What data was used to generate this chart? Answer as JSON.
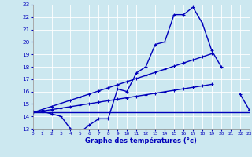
{
  "bg_color": "#cce8f0",
  "line_color": "#0000bb",
  "xlabel": "Graphe des températures (°c)",
  "x_hours": [
    0,
    1,
    2,
    3,
    4,
    5,
    6,
    7,
    8,
    9,
    10,
    11,
    12,
    13,
    14,
    15,
    16,
    17,
    18,
    19,
    20,
    21,
    22,
    23
  ],
  "series1": [
    14.4,
    14.4,
    14.2,
    14.0,
    13.0,
    12.7,
    13.3,
    13.8,
    13.8,
    16.2,
    16.0,
    17.5,
    18.0,
    19.8,
    20.0,
    22.2,
    22.2,
    22.8,
    21.5,
    19.3,
    18.0,
    null,
    15.8,
    14.5
  ],
  "series2": [
    14.3,
    14.3,
    14.3,
    14.3,
    14.3,
    14.3,
    14.3,
    14.3,
    14.3,
    14.3,
    14.3,
    14.3,
    14.3,
    14.3,
    14.3,
    14.3,
    14.3,
    14.3,
    14.3,
    14.3,
    14.3,
    14.3,
    14.3,
    14.3
  ],
  "series3_x": [
    0,
    1,
    2,
    3,
    4,
    5,
    6,
    7,
    8,
    9,
    10,
    11,
    12,
    13,
    14,
    15,
    16,
    17,
    18,
    19,
    20,
    21,
    22,
    23
  ],
  "series3": [
    14.3,
    14.55,
    14.8,
    15.05,
    15.3,
    15.55,
    15.8,
    16.05,
    16.3,
    16.55,
    16.8,
    17.05,
    17.3,
    17.55,
    17.8,
    18.05,
    18.3,
    18.55,
    18.8,
    19.05,
    null,
    null,
    null,
    14.5
  ],
  "series4_x": [
    0,
    1,
    2,
    3,
    4,
    5,
    6,
    7,
    8,
    9,
    10,
    11,
    12,
    13,
    14,
    15,
    16,
    17,
    18,
    19,
    20,
    21,
    22,
    23
  ],
  "series4": [
    14.3,
    14.42,
    14.54,
    14.66,
    14.78,
    14.9,
    15.02,
    15.14,
    15.26,
    15.38,
    15.5,
    15.62,
    15.74,
    15.86,
    15.98,
    16.1,
    16.22,
    16.34,
    16.46,
    16.58,
    null,
    null,
    null,
    14.5
  ],
  "ylim": [
    13,
    23
  ],
  "yticks": [
    13,
    14,
    15,
    16,
    17,
    18,
    19,
    20,
    21,
    22,
    23
  ],
  "xlim": [
    0,
    23
  ],
  "xticks": [
    0,
    1,
    2,
    3,
    4,
    5,
    6,
    7,
    8,
    9,
    10,
    11,
    12,
    13,
    14,
    15,
    16,
    17,
    18,
    19,
    20,
    21,
    22,
    23
  ]
}
